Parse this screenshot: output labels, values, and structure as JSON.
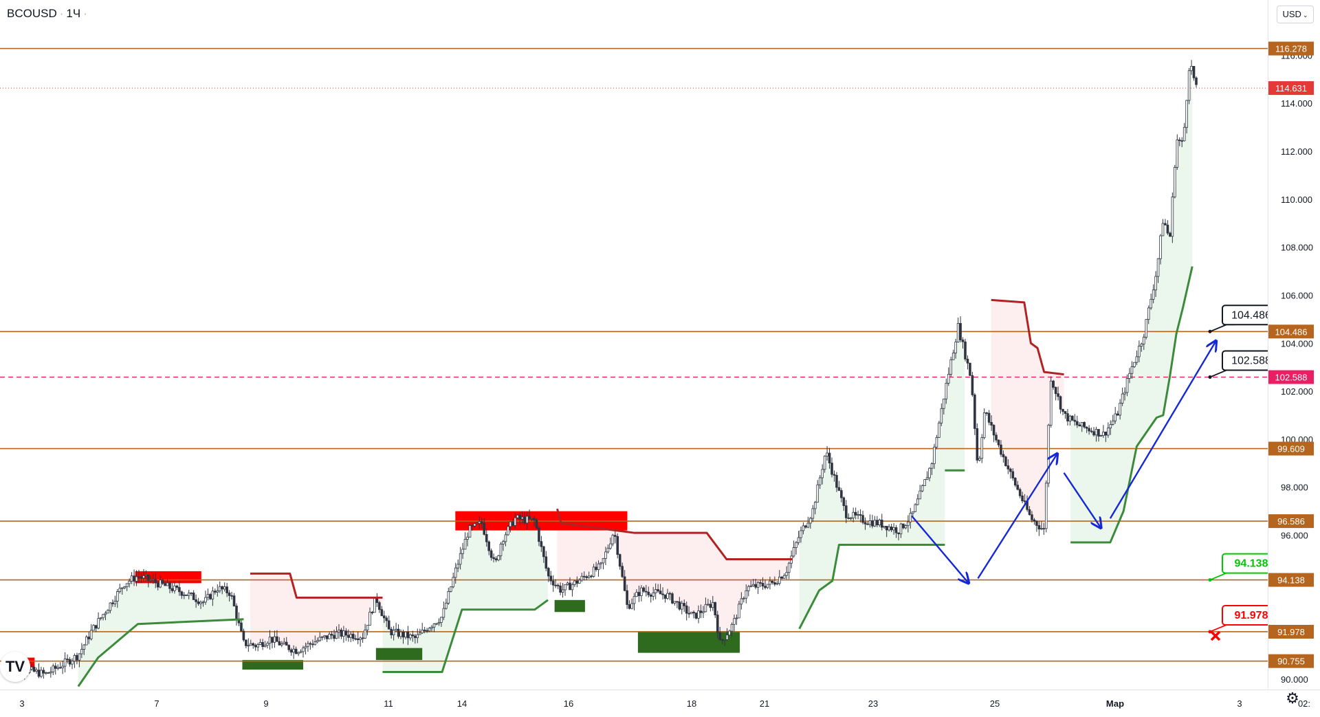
{
  "header": {
    "symbol": "BCOUSD",
    "interval": "1Ч",
    "currency": "USD"
  },
  "icons": {
    "logo": "tradingview-logo",
    "settings": "gear-icon",
    "currency_caret": "chevron-down-icon"
  },
  "colors": {
    "level_line": "#b5651d",
    "level_label": "#b5651d",
    "dashed_level": "#e91e63",
    "last_price": "#e53935",
    "supertrend_up": "#3b8b3b",
    "supertrend_down": "#b22222",
    "up_fill": "#e8f5e9",
    "down_fill": "#fdecec",
    "supply_zone": "#ff0000",
    "demand_zone": "#2e6b1f",
    "arrow": "#1428d8",
    "target_green": "#00c800",
    "stop_red": "#ff0000"
  },
  "chart_data": {
    "type": "candlestick",
    "symbol": "BCOUSD",
    "interval": "1Ч",
    "ylim": [
      89.6,
      118.3
    ],
    "y_ticks": [
      "90.000",
      "96.000",
      "98.000",
      "100.000",
      "102.000",
      "104.000",
      "106.000",
      "108.000",
      "110.000",
      "112.000",
      "114.000",
      "116.000"
    ],
    "x_ticks": [
      "3",
      "7",
      "9",
      "11",
      "14",
      "16",
      "18",
      "21",
      "23",
      "25",
      "Мар",
      "3",
      "02:"
    ],
    "last_price": "114.631",
    "levels": [
      {
        "value": 116.278,
        "label": "116.278"
      },
      {
        "value": 104.486,
        "label": "104.486"
      },
      {
        "value": 99.609,
        "label": "99.609"
      },
      {
        "value": 96.586,
        "label": "96.586"
      },
      {
        "value": 94.138,
        "label": "94.138"
      },
      {
        "value": 91.978,
        "label": "91.978"
      },
      {
        "value": 90.755,
        "label": "90.755"
      }
    ],
    "dashed_level": {
      "value": 102.588,
      "label": "102.588"
    },
    "callouts": [
      {
        "label": "104.486",
        "style": "black"
      },
      {
        "label": "102.588",
        "style": "black"
      },
      {
        "label": "94.138",
        "style": "green"
      },
      {
        "label": "91.978",
        "style": "red"
      }
    ],
    "price_path": [
      [
        0,
        90.6
      ],
      [
        0.03,
        90.2
      ],
      [
        0.055,
        91.0
      ],
      [
        0.065,
        92.0
      ],
      [
        0.08,
        93.2
      ],
      [
        0.09,
        94.0
      ],
      [
        0.1,
        94.3
      ],
      [
        0.12,
        93.9
      ],
      [
        0.135,
        93.6
      ],
      [
        0.15,
        93.2
      ],
      [
        0.16,
        93.8
      ],
      [
        0.17,
        93.6
      ],
      [
        0.18,
        91.5
      ],
      [
        0.19,
        91.4
      ],
      [
        0.2,
        91.7
      ],
      [
        0.21,
        91.4
      ],
      [
        0.22,
        91.2
      ],
      [
        0.235,
        91.6
      ],
      [
        0.25,
        91.9
      ],
      [
        0.27,
        91.8
      ],
      [
        0.28,
        93.4
      ],
      [
        0.29,
        92.0
      ],
      [
        0.31,
        91.7
      ],
      [
        0.32,
        92.2
      ],
      [
        0.33,
        92.6
      ],
      [
        0.34,
        94.5
      ],
      [
        0.35,
        96.2
      ],
      [
        0.36,
        96.5
      ],
      [
        0.37,
        94.7
      ],
      [
        0.375,
        95.8
      ],
      [
        0.385,
        96.7
      ],
      [
        0.4,
        96.6
      ],
      [
        0.41,
        94.3
      ],
      [
        0.42,
        93.7
      ],
      [
        0.43,
        94.0
      ],
      [
        0.45,
        94.7
      ],
      [
        0.46,
        96.2
      ],
      [
        0.47,
        93.0
      ],
      [
        0.48,
        93.7
      ],
      [
        0.5,
        93.5
      ],
      [
        0.52,
        92.6
      ],
      [
        0.535,
        93.2
      ],
      [
        0.54,
        91.5
      ],
      [
        0.55,
        92.3
      ],
      [
        0.56,
        93.8
      ],
      [
        0.58,
        94.0
      ],
      [
        0.59,
        94.5
      ],
      [
        0.6,
        96.0
      ],
      [
        0.61,
        97.0
      ],
      [
        0.62,
        99.5
      ],
      [
        0.635,
        96.9
      ],
      [
        0.65,
        96.6
      ],
      [
        0.66,
        96.5
      ],
      [
        0.675,
        96.2
      ],
      [
        0.685,
        96.8
      ],
      [
        0.69,
        97.5
      ],
      [
        0.7,
        99.0
      ],
      [
        0.71,
        102.0
      ],
      [
        0.72,
        104.7
      ],
      [
        0.73,
        102.5
      ],
      [
        0.735,
        98.7
      ],
      [
        0.74,
        101.2
      ],
      [
        0.75,
        99.8
      ],
      [
        0.76,
        98.5
      ],
      [
        0.775,
        96.7
      ],
      [
        0.785,
        96.2
      ],
      [
        0.79,
        102.6
      ],
      [
        0.8,
        101.0
      ],
      [
        0.81,
        100.6
      ],
      [
        0.82,
        100.4
      ],
      [
        0.83,
        100.2
      ],
      [
        0.84,
        101.0
      ],
      [
        0.85,
        102.8
      ],
      [
        0.86,
        104.3
      ],
      [
        0.87,
        107.0
      ],
      [
        0.875,
        109.2
      ],
      [
        0.88,
        108.3
      ],
      [
        0.885,
        112.5
      ],
      [
        0.89,
        112.3
      ],
      [
        0.895,
        115.8
      ],
      [
        0.9,
        114.6
      ]
    ],
    "supertrend_up": [
      [
        [
          0.055,
          89.7
        ],
        [
          0.07,
          90.9
        ],
        [
          0.1,
          92.3
        ],
        [
          0.18,
          92.5
        ]
      ],
      [
        [
          0.285,
          90.3
        ],
        [
          0.33,
          90.3
        ],
        [
          0.345,
          92.9
        ],
        [
          0.4,
          92.9
        ],
        [
          0.41,
          93.3
        ]
      ],
      [
        [
          0.6,
          92.1
        ],
        [
          0.615,
          93.7
        ],
        [
          0.625,
          94.1
        ],
        [
          0.63,
          95.6
        ],
        [
          0.71,
          95.6
        ]
      ],
      [
        [
          0.71,
          98.7
        ],
        [
          0.725,
          98.7
        ]
      ],
      [
        [
          0.805,
          95.7
        ],
        [
          0.835,
          95.7
        ],
        [
          0.845,
          97.0
        ],
        [
          0.855,
          99.7
        ],
        [
          0.87,
          100.9
        ],
        [
          0.875,
          101.0
        ],
        [
          0.88,
          102.6
        ],
        [
          0.885,
          104.4
        ],
        [
          0.89,
          105.5
        ],
        [
          0.897,
          107.2
        ]
      ]
    ],
    "supertrend_down": [
      [
        [
          0.185,
          94.4
        ],
        [
          0.215,
          94.4
        ],
        [
          0.22,
          93.4
        ],
        [
          0.285,
          93.4
        ]
      ],
      [
        [
          0.417,
          97.1
        ],
        [
          0.42,
          96.5
        ],
        [
          0.475,
          96.1
        ],
        [
          0.53,
          96.1
        ],
        [
          0.545,
          95.0
        ],
        [
          0.595,
          95.0
        ]
      ],
      [
        [
          0.745,
          105.8
        ],
        [
          0.77,
          105.7
        ],
        [
          0.775,
          104.0
        ],
        [
          0.78,
          103.8
        ],
        [
          0.785,
          102.8
        ],
        [
          0.8,
          102.7
        ]
      ]
    ],
    "supply_zones": [
      {
        "from": 0.098,
        "to": 0.148,
        "high": 94.5,
        "low": 94.0
      },
      {
        "from": 0.34,
        "to": 0.47,
        "high": 97.0,
        "low": 96.2
      },
      {
        "from": 0.0,
        "to": 0.022,
        "high": 90.9,
        "low": 90.5
      }
    ],
    "demand_zones": [
      {
        "from": 0.179,
        "to": 0.225,
        "high": 90.8,
        "low": 90.4
      },
      {
        "from": 0.28,
        "to": 0.315,
        "high": 91.3,
        "low": 90.8
      },
      {
        "from": 0.415,
        "to": 0.438,
        "high": 93.3,
        "low": 92.8
      },
      {
        "from": 0.478,
        "to": 0.555,
        "high": 92.0,
        "low": 91.1
      }
    ],
    "arrows": [
      [
        [
          0.685,
          96.8
        ],
        [
          0.728,
          94.0
        ]
      ],
      [
        [
          0.735,
          94.2
        ],
        [
          0.795,
          99.4
        ]
      ],
      [
        [
          0.8,
          98.6
        ],
        [
          0.828,
          96.3
        ]
      ],
      [
        [
          0.835,
          96.7
        ],
        [
          0.915,
          104.1
        ]
      ]
    ],
    "grid": false
  }
}
